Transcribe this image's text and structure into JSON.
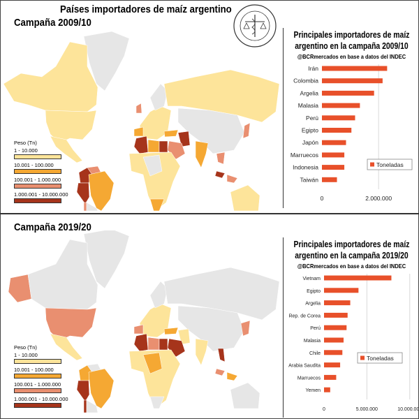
{
  "top": {
    "main_title": "Países importadores de maíz argentino",
    "season_label": "Campaña 2009/10"
  },
  "bottom": {
    "season_label": "Campaña 2019/20"
  },
  "logo_text": "BOLSA DE COMERCIO DE ROSARIO",
  "legend": {
    "title": "Peso (Tn)",
    "items": [
      {
        "label": "1 - 10.000",
        "color": "#fde49a"
      },
      {
        "label": "10.001 - 100.000",
        "color": "#f5a833"
      },
      {
        "label": "100.001 - 1.000.000",
        "color": "#e98f70"
      },
      {
        "label": "1.000.001 - 10.000.000",
        "color": "#a6341b"
      }
    ]
  },
  "no_data_color": "#e6e6e6",
  "chart_data": [
    {
      "type": "bar",
      "orientation": "horizontal",
      "title": "Principales importadores de maíz argentino en la campaña 2009/10",
      "subtitle": "@BCRmercados en base a datos del INDEC",
      "categories": [
        "Irán",
        "Colombia",
        "Argelia",
        "Malasia",
        "Perú",
        "Egipto",
        "Japón",
        "Marruecos",
        "Indonesia",
        "Taiwán"
      ],
      "series": [
        {
          "name": "Toneladas",
          "color": "#e8502a",
          "values": [
            2300000,
            2140000,
            1840000,
            1340000,
            1170000,
            1040000,
            850000,
            790000,
            790000,
            530000
          ]
        }
      ],
      "xlim": [
        0,
        3400000
      ],
      "xticks": [
        0,
        2000000
      ],
      "xtick_labels": [
        "0",
        "2.000.000"
      ],
      "grid": "vertical",
      "legend_position": "right"
    },
    {
      "type": "bar",
      "orientation": "horizontal",
      "title": "Principales importadores de maíz argentino en la campaña 2019/20",
      "subtitle": "@BCRmercados en base a datos del INDEC",
      "categories": [
        "Vietnam",
        "Egipto",
        "Argelia",
        "Rep. de Corea",
        "Perú",
        "Malasia",
        "Chile",
        "Arabia Saudita",
        "Marruecos",
        "Yemen"
      ],
      "series": [
        {
          "name": "Toneladas",
          "color": "#e8502a",
          "values": [
            7860000,
            4020000,
            3060000,
            2750000,
            2630000,
            2280000,
            2140000,
            1880000,
            1420000,
            720000
          ]
        }
      ],
      "xlim": [
        0,
        11000000
      ],
      "xticks": [
        0,
        5000000,
        10000000
      ],
      "xtick_labels": [
        "0",
        "5.000.000",
        "10.000.000"
      ],
      "grid": "vertical",
      "legend_position": "right"
    }
  ]
}
